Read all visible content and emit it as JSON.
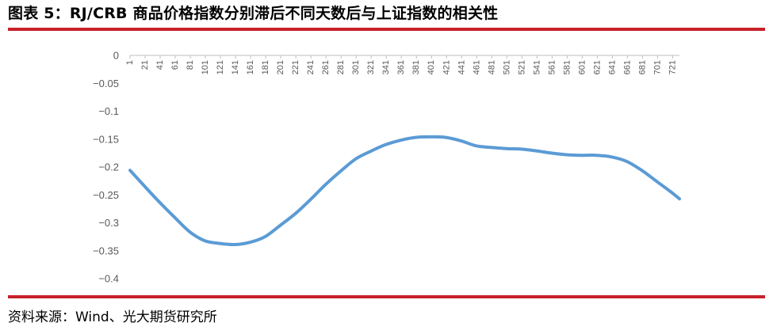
{
  "header": {
    "title": "图表 5：RJ/CRB 商品价格指数分别滞后不同天数后与上证指数的相关性"
  },
  "footer": {
    "source": "资料来源：Wind、光大期货研究所"
  },
  "colors": {
    "accent_rule": "#c8222a",
    "series_line": "#5b9bd5",
    "axis": "#bfbfbf",
    "tick_text": "#595959"
  },
  "chart_data": {
    "type": "line",
    "title": "",
    "xlabel": "",
    "ylabel": "",
    "ylim": [
      -0.4,
      0
    ],
    "yticks": [
      0,
      -0.05,
      -0.1,
      -0.15,
      -0.2,
      -0.25,
      -0.3,
      -0.35,
      -0.4
    ],
    "ytick_labels": [
      "0",
      "-0.05",
      "-0.1",
      "-0.15",
      "-0.2",
      "-0.25",
      "-0.3",
      "-0.35",
      "-0.4"
    ],
    "xlim": [
      1,
      730
    ],
    "xticks": [
      1,
      21,
      41,
      61,
      81,
      101,
      121,
      141,
      161,
      181,
      201,
      221,
      241,
      261,
      281,
      301,
      321,
      341,
      361,
      381,
      401,
      421,
      441,
      461,
      481,
      501,
      521,
      541,
      561,
      581,
      601,
      621,
      641,
      661,
      681,
      701,
      721
    ],
    "x_axis_position": "top",
    "grid": false,
    "legend": "none",
    "series": [
      {
        "x": [
          1,
          20,
          40,
          60,
          80,
          100,
          120,
          140,
          160,
          180,
          200,
          220,
          240,
          260,
          280,
          300,
          320,
          340,
          360,
          380,
          400,
          420,
          440,
          460,
          480,
          500,
          520,
          540,
          560,
          580,
          600,
          620,
          640,
          660,
          680,
          700,
          720,
          730
        ],
        "values": [
          -0.206,
          -0.234,
          -0.263,
          -0.29,
          -0.316,
          -0.332,
          -0.337,
          -0.339,
          -0.335,
          -0.325,
          -0.305,
          -0.284,
          -0.259,
          -0.232,
          -0.208,
          -0.186,
          -0.172,
          -0.16,
          -0.152,
          -0.147,
          -0.146,
          -0.147,
          -0.153,
          -0.162,
          -0.165,
          -0.167,
          -0.168,
          -0.171,
          -0.175,
          -0.178,
          -0.179,
          -0.179,
          -0.182,
          -0.19,
          -0.206,
          -0.226,
          -0.246,
          -0.257
        ]
      }
    ]
  }
}
